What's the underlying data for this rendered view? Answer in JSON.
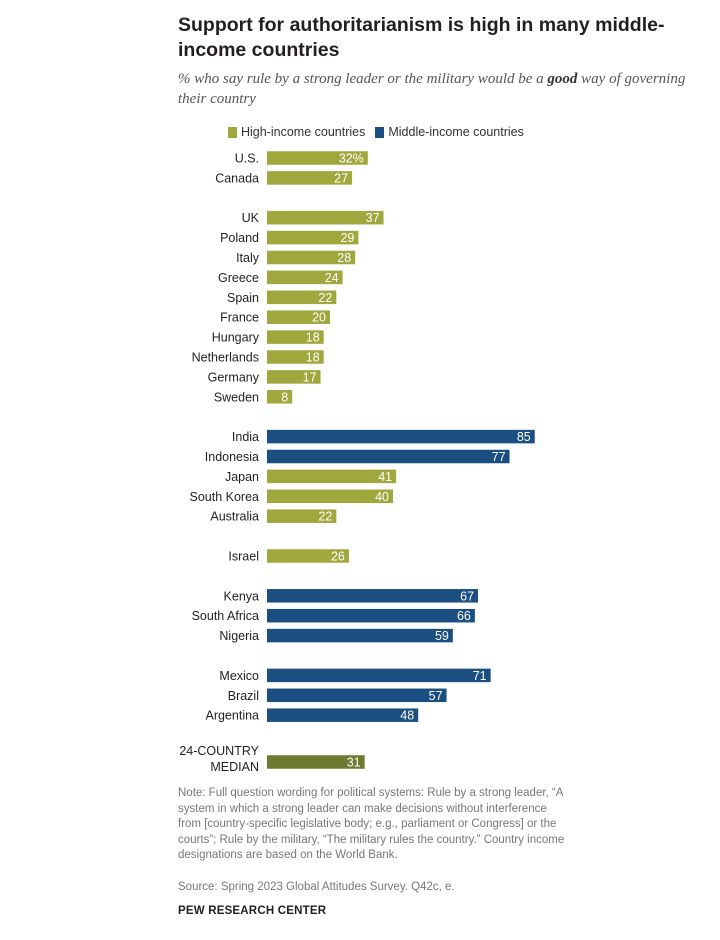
{
  "title": "Support for authoritarianism is high in many middle-income countries",
  "subtitle_pre": "% who say rule by a strong leader or the military would be a ",
  "subtitle_bold": "good",
  "subtitle_post": " way of governing their country",
  "legend": {
    "high": "High-income countries",
    "middle": "Middle-income countries"
  },
  "colors": {
    "high": "#a0a83d",
    "middle": "#1b4f82",
    "median": "#6e7a2f"
  },
  "chart_data": {
    "type": "bar",
    "orientation": "horizontal",
    "unit_suffix_first": "%",
    "series_names": [
      "High-income countries",
      "Middle-income countries"
    ],
    "rows": [
      {
        "label": "U.S.",
        "value": 32,
        "display": "32%",
        "group": "high",
        "gap_before": false
      },
      {
        "label": "Canada",
        "value": 27,
        "display": "27",
        "group": "high",
        "gap_before": false
      },
      {
        "label": "UK",
        "value": 37,
        "display": "37",
        "group": "high",
        "gap_before": true
      },
      {
        "label": "Poland",
        "value": 29,
        "display": "29",
        "group": "high",
        "gap_before": false
      },
      {
        "label": "Italy",
        "value": 28,
        "display": "28",
        "group": "high",
        "gap_before": false
      },
      {
        "label": "Greece",
        "value": 24,
        "display": "24",
        "group": "high",
        "gap_before": false
      },
      {
        "label": "Spain",
        "value": 22,
        "display": "22",
        "group": "high",
        "gap_before": false
      },
      {
        "label": "France",
        "value": 20,
        "display": "20",
        "group": "high",
        "gap_before": false
      },
      {
        "label": "Hungary",
        "value": 18,
        "display": "18",
        "group": "high",
        "gap_before": false
      },
      {
        "label": "Netherlands",
        "value": 18,
        "display": "18",
        "group": "high",
        "gap_before": false
      },
      {
        "label": "Germany",
        "value": 17,
        "display": "17",
        "group": "high",
        "gap_before": false
      },
      {
        "label": "Sweden",
        "value": 8,
        "display": "8",
        "group": "high",
        "gap_before": false
      },
      {
        "label": "India",
        "value": 85,
        "display": "85",
        "group": "middle",
        "gap_before": true
      },
      {
        "label": "Indonesia",
        "value": 77,
        "display": "77",
        "group": "middle",
        "gap_before": false
      },
      {
        "label": "Japan",
        "value": 41,
        "display": "41",
        "group": "high",
        "gap_before": false
      },
      {
        "label": "South Korea",
        "value": 40,
        "display": "40",
        "group": "high",
        "gap_before": false
      },
      {
        "label": "Australia",
        "value": 22,
        "display": "22",
        "group": "high",
        "gap_before": false
      },
      {
        "label": "Israel",
        "value": 26,
        "display": "26",
        "group": "high",
        "gap_before": true
      },
      {
        "label": "Kenya",
        "value": 67,
        "display": "67",
        "group": "middle",
        "gap_before": true
      },
      {
        "label": "South Africa",
        "value": 66,
        "display": "66",
        "group": "middle",
        "gap_before": false
      },
      {
        "label": "Nigeria",
        "value": 59,
        "display": "59",
        "group": "middle",
        "gap_before": false
      },
      {
        "label": "Mexico",
        "value": 71,
        "display": "71",
        "group": "middle",
        "gap_before": true
      },
      {
        "label": "Brazil",
        "value": 57,
        "display": "57",
        "group": "middle",
        "gap_before": false
      },
      {
        "label": "Argentina",
        "value": 48,
        "display": "48",
        "group": "middle",
        "gap_before": false
      },
      {
        "label": "24-COUNTRY MEDIAN",
        "label_lines": [
          "24-COUNTRY",
          "MEDIAN"
        ],
        "value": 31,
        "display": "31",
        "group": "median",
        "gap_before": true
      }
    ],
    "xlim": [
      0,
      100
    ],
    "grid": false,
    "legend_position": "top"
  },
  "note": "Note: Full question wording for political systems: Rule by a strong leader, “A system in which a strong leader can make decisions without interference from [country-specific legislative body; e.g., parliament or Congress] or the courts”; Rule by the military, “The military rules the country.” Country income designations are based on the World Bank.",
  "source": "Source: Spring 2023 Global Attitudes Survey. Q42c, e.",
  "brand": "PEW RESEARCH CENTER"
}
